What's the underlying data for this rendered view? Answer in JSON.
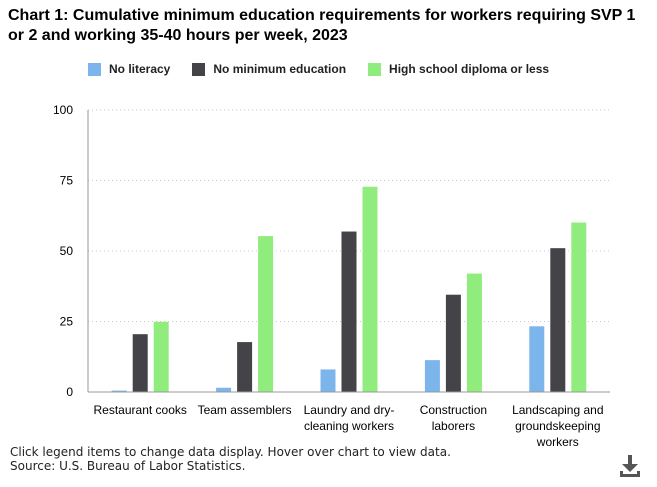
{
  "title": "Chart 1: Cumulative minimum education requirements for workers requiring SVP 1 or 2 and working 35-40 hours per week, 2023",
  "footnote": {
    "instructions": "Click legend items to change data display. Hover over chart to view data.",
    "source": "Source: U.S. Bureau of Labor Statistics."
  },
  "download_icon": "download-icon",
  "chart_data": {
    "type": "bar",
    "title": "Chart 1: Cumulative minimum education requirements for workers requiring SVP 1 or 2 and working 35-40 hours per week, 2023",
    "xlabel": "",
    "ylabel": "",
    "ylim": [
      0,
      100
    ],
    "yticks": [
      0,
      25,
      50,
      75,
      100
    ],
    "grid": true,
    "legend_position": "top",
    "categories": [
      [
        "Restaurant cooks"
      ],
      [
        "Team assemblers"
      ],
      [
        "Laundry and dry-",
        "cleaning workers"
      ],
      [
        "Construction",
        "laborers"
      ],
      [
        "Landscaping and",
        "groundskeeping",
        "workers"
      ]
    ],
    "series": [
      {
        "name": "No literacy",
        "color": "#7cb5ec",
        "values": [
          0.5,
          1.5,
          8,
          11.3,
          23.3
        ]
      },
      {
        "name": "No minimum education",
        "color": "#434348",
        "values": [
          20.5,
          17.7,
          56.9,
          34.5,
          51
        ]
      },
      {
        "name": "High school diploma or less",
        "color": "#90ed7d",
        "values": [
          24.9,
          55.3,
          72.8,
          42,
          60.1
        ]
      }
    ]
  }
}
